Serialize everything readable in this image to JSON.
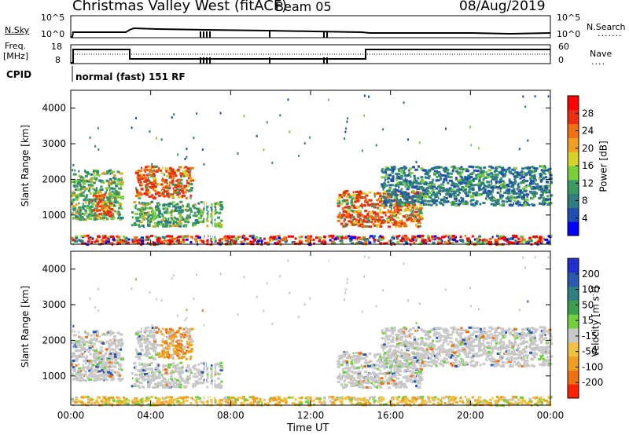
{
  "header": {
    "title": "Christmas Valley West (fitACF)",
    "beam": "Beam 05",
    "date": "08/Aug/2019"
  },
  "top_panels": {
    "nsky_label": "N.Sky",
    "nsearch_label": "N.Search",
    "freq_label_1": "Freq.",
    "freq_label_2": "[MHz]",
    "nave_label": "Nave",
    "cpid_label": "CPID",
    "cpid_text": "normal (fast) 151 RF",
    "noise_ticks": [
      "10^5",
      "10^0"
    ],
    "freq_ticks": [
      "18",
      "8"
    ],
    "nave_ticks": [
      "60",
      "0"
    ]
  },
  "colorbars": {
    "power": {
      "label": "Power [dB]",
      "ticks": [
        "28",
        "24",
        "20",
        "16",
        "12",
        "8",
        "4"
      ],
      "colors": [
        "#0000ff",
        "#1f4fb0",
        "#2e7d80",
        "#3a9a60",
        "#7bd03a",
        "#d6d22a",
        "#f0a020",
        "#f07010",
        "#e83010",
        "#ff0000"
      ]
    },
    "velocity": {
      "label": "Velocity [m s",
      "label_sup": "-1",
      "label_end": "]",
      "ticks": [
        "200",
        "100",
        "50",
        "15",
        "-15",
        "-50",
        "-100",
        "-200"
      ],
      "colors": [
        "#1f2fd0",
        "#2a5ab0",
        "#2e8080",
        "#3aa050",
        "#70d040",
        "#c8c8c8",
        "#f0c040",
        "#f0a020",
        "#f07010",
        "#ff2000"
      ]
    }
  },
  "chart_data": [
    {
      "type": "heatmap",
      "title": "Power",
      "ylabel": "Slant Range [km]",
      "yticks": [
        "4000",
        "3000",
        "2000",
        "1000"
      ],
      "xticks": [
        "00:00",
        "04:00",
        "08:00",
        "12:00",
        "16:00",
        "20:00",
        "00:00"
      ],
      "ylim": [
        180,
        4500
      ],
      "xlim_hours": [
        0,
        24
      ],
      "scatter_regions": [
        {
          "t0": 0.0,
          "t1": 2.5,
          "r0": 900,
          "r1": 2300,
          "level": "mid"
        },
        {
          "t0": 1.0,
          "t1": 2.0,
          "r0": 900,
          "r1": 1600,
          "level": "high"
        },
        {
          "t0": 3.2,
          "t1": 6.0,
          "r0": 1500,
          "r1": 2400,
          "level": "high"
        },
        {
          "t0": 3.0,
          "t1": 7.5,
          "r0": 700,
          "r1": 1400,
          "level": "mid"
        },
        {
          "t0": 13.3,
          "t1": 17.5,
          "r0": 700,
          "r1": 1700,
          "level": "high"
        },
        {
          "t0": 15.5,
          "t1": 24.0,
          "r0": 1300,
          "r1": 2400,
          "level": "low"
        },
        {
          "t0": 0.0,
          "t1": 24.0,
          "r0": 200,
          "r1": 450,
          "level": "near"
        }
      ]
    },
    {
      "type": "heatmap",
      "title": "Velocity",
      "ylabel": "Slant Range [km]",
      "yticks": [
        "4000",
        "3000",
        "2000",
        "1000"
      ],
      "xticks": [
        "00:00",
        "04:00",
        "08:00",
        "12:00",
        "16:00",
        "20:00",
        "00:00"
      ],
      "xlabel": "Time UT",
      "ylim": [
        180,
        4500
      ],
      "xlim_hours": [
        0,
        24
      ]
    }
  ]
}
